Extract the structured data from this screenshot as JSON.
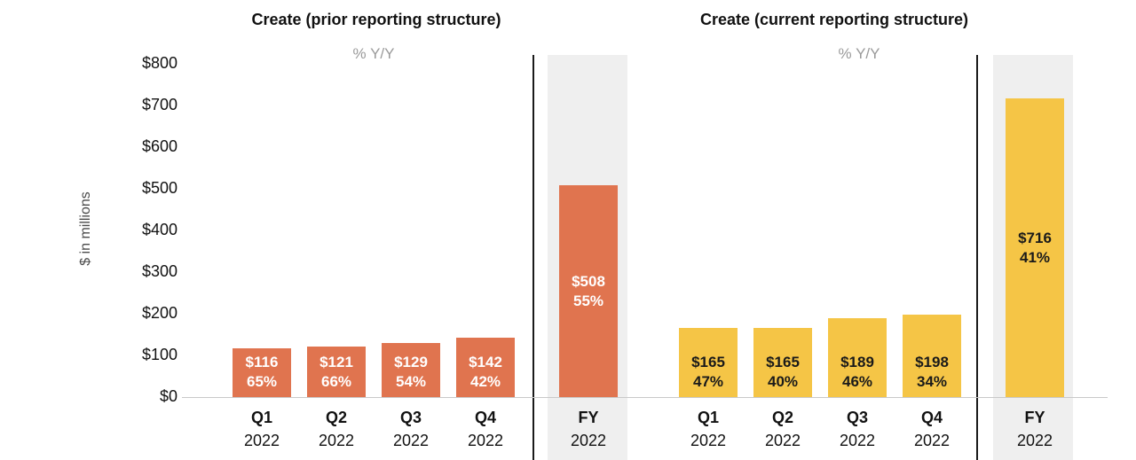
{
  "chart_data": {
    "type": "bar",
    "ylabel": "$ in millions",
    "ylim": [
      0,
      800
    ],
    "ytick_labels": [
      "$0",
      "$100",
      "$200",
      "$300",
      "$400",
      "$500",
      "$600",
      "$700",
      "$800"
    ],
    "legend": "none",
    "grid": "off",
    "panels": [
      {
        "title": "Create (prior reporting structure)",
        "subtitle": "% Y/Y",
        "bar_color": "#E0744F",
        "label_color": "#FFFFFF",
        "categories": [
          "Q1 2022",
          "Q2 2022",
          "Q3 2022",
          "Q4 2022",
          "FY 2022"
        ],
        "values": [
          116,
          121,
          129,
          142,
          508
        ],
        "bars": [
          {
            "quarter": "Q1",
            "year": "2022",
            "value": 116,
            "value_label": "$116",
            "yoy": "65%",
            "fy": false
          },
          {
            "quarter": "Q2",
            "year": "2022",
            "value": 121,
            "value_label": "$121",
            "yoy": "66%",
            "fy": false
          },
          {
            "quarter": "Q3",
            "year": "2022",
            "value": 129,
            "value_label": "$129",
            "yoy": "54%",
            "fy": false
          },
          {
            "quarter": "Q4",
            "year": "2022",
            "value": 142,
            "value_label": "$142",
            "yoy": "42%",
            "fy": false
          },
          {
            "quarter": "FY",
            "year": "2022",
            "value": 508,
            "value_label": "$508",
            "yoy": "55%",
            "fy": true
          }
        ]
      },
      {
        "title": "Create (current reporting structure)",
        "subtitle": "% Y/Y",
        "bar_color": "#F5C546",
        "label_color": "#1A1A1A",
        "categories": [
          "Q1 2022",
          "Q2 2022",
          "Q3 2022",
          "Q4 2022",
          "FY 2022"
        ],
        "values": [
          165,
          165,
          189,
          198,
          716
        ],
        "bars": [
          {
            "quarter": "Q1",
            "year": "2022",
            "value": 165,
            "value_label": "$165",
            "yoy": "47%",
            "fy": false
          },
          {
            "quarter": "Q2",
            "year": "2022",
            "value": 165,
            "value_label": "$165",
            "yoy": "40%",
            "fy": false
          },
          {
            "quarter": "Q3",
            "year": "2022",
            "value": 189,
            "value_label": "$189",
            "yoy": "46%",
            "fy": false
          },
          {
            "quarter": "Q4",
            "year": "2022",
            "value": 198,
            "value_label": "$198",
            "yoy": "34%",
            "fy": false
          },
          {
            "quarter": "FY",
            "year": "2022",
            "value": 716,
            "value_label": "$716",
            "yoy": "41%",
            "fy": true
          }
        ]
      }
    ],
    "colors": {
      "fy_band": "#EFEFEF",
      "divider": "#1A1A1A",
      "baseline": "#C9C9C9",
      "subtitle_text": "#9A9A9A",
      "axis_text": "#111111",
      "title_text": "#111111"
    }
  }
}
